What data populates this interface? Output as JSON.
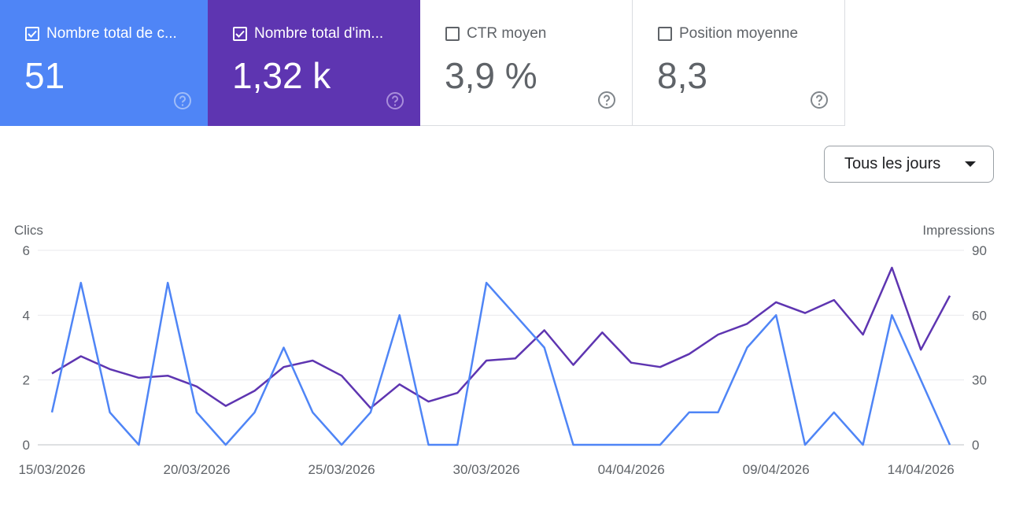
{
  "metric_cards": [
    {
      "label": "Nombre total de c...",
      "value": "51",
      "checked": true,
      "color": "#4f85f6"
    },
    {
      "label": "Nombre total d'im...",
      "value": "1,32 k",
      "checked": true,
      "color": "#5e35b1"
    },
    {
      "label": "CTR moyen",
      "value": "3,9 %",
      "checked": false
    },
    {
      "label": "Position moyenne",
      "value": "8,3",
      "checked": false
    }
  ],
  "period_selector": {
    "label": "Tous les jours"
  },
  "chart_data": {
    "type": "line",
    "x_labels": [
      "15/03/2026",
      "20/03/2026",
      "25/03/2026",
      "30/03/2026",
      "04/04/2026",
      "09/04/2026",
      "14/04/2026"
    ],
    "x": [
      "15/03/2026",
      "16/03/2026",
      "17/03/2026",
      "18/03/2026",
      "19/03/2026",
      "20/03/2026",
      "21/03/2026",
      "22/03/2026",
      "23/03/2026",
      "24/03/2026",
      "25/03/2026",
      "26/03/2026",
      "27/03/2026",
      "28/03/2026",
      "29/03/2026",
      "30/03/2026",
      "31/03/2026",
      "01/04/2026",
      "02/04/2026",
      "03/04/2026",
      "04/04/2026",
      "05/04/2026",
      "06/04/2026",
      "07/04/2026",
      "08/04/2026",
      "09/04/2026",
      "10/04/2026",
      "11/04/2026",
      "12/04/2026",
      "13/04/2026",
      "14/04/2026",
      "15/04/2026"
    ],
    "left_axis": {
      "label": "Clics",
      "ticks": [
        "0",
        "2",
        "4",
        "6"
      ],
      "range": [
        0,
        6
      ]
    },
    "right_axis": {
      "label": "Impressions",
      "ticks": [
        "0",
        "30",
        "60",
        "90"
      ],
      "range": [
        0,
        90
      ]
    },
    "grid": true,
    "series": [
      {
        "name": "Clics",
        "axis": "left",
        "color": "#4f85f6",
        "values": [
          1,
          5,
          1,
          0,
          5,
          1,
          0,
          1,
          3,
          1,
          0,
          1,
          4,
          0,
          0,
          5,
          4,
          3,
          0,
          0,
          0,
          0,
          1,
          1,
          3,
          4,
          0,
          1,
          0,
          4,
          2,
          0
        ]
      },
      {
        "name": "Impressions",
        "axis": "right",
        "color": "#5e35b1",
        "values": [
          33,
          41,
          35,
          31,
          32,
          27,
          18,
          25,
          36,
          39,
          32,
          17,
          28,
          20,
          24,
          39,
          40,
          53,
          37,
          52,
          38,
          36,
          42,
          51,
          56,
          66,
          61,
          67,
          51,
          82,
          44,
          69
        ]
      }
    ]
  }
}
